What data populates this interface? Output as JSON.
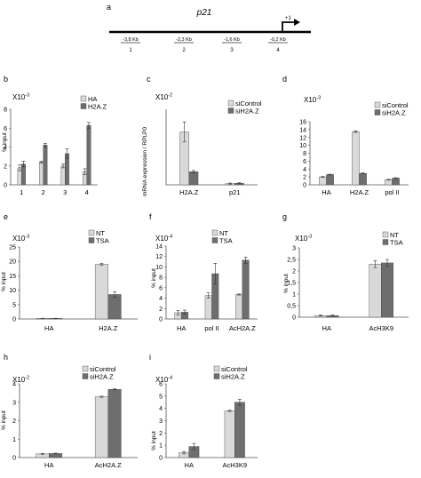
{
  "panel_a": {
    "label": "a",
    "gene": "p21",
    "tss_label": "+1",
    "regions": [
      {
        "pos": "-3,8 Kb",
        "num": "1"
      },
      {
        "pos": "-2,3 Kb",
        "num": "2"
      },
      {
        "pos": "-1,6 Kb",
        "num": "3"
      },
      {
        "pos": "-0,2 Kb",
        "num": "4"
      }
    ]
  },
  "colors": {
    "light": "#d9d9d9",
    "dark": "#6e6e6e"
  },
  "chart_data": [
    {
      "id": "b",
      "panel": "b",
      "type": "bar",
      "scale": "X10",
      "scale_exp": "-3",
      "ylabel": "% input",
      "ylim": [
        0,
        8
      ],
      "yticks": [
        "0",
        "2",
        "4",
        "6",
        "8"
      ],
      "categories": [
        "1",
        "2",
        "3",
        "4"
      ],
      "series": [
        {
          "name": "HA",
          "color": "light",
          "values": [
            1.8,
            2.4,
            2.0,
            1.4
          ],
          "errors": [
            0.3,
            0.1,
            0.2,
            0.3
          ]
        },
        {
          "name": "H2A.Z",
          "color": "dark",
          "values": [
            2.2,
            4.2,
            3.3,
            6.3
          ],
          "errors": [
            0.3,
            0.2,
            0.5,
            0.3
          ]
        }
      ]
    },
    {
      "id": "c",
      "panel": "c",
      "type": "bar",
      "scale": "X10",
      "scale_exp": "-2",
      "ylabel": "mRNA expression / RPLP0",
      "ylim": [
        0,
        30
      ],
      "yticks": [],
      "categories": [
        "H2A.Z",
        "p21"
      ],
      "series": [
        {
          "name": "siControl",
          "color": "light",
          "values": [
            21,
            0.5
          ],
          "errors": [
            4,
            0.2
          ]
        },
        {
          "name": "siH2A.Z",
          "color": "dark",
          "values": [
            5.2,
            0.6
          ],
          "errors": [
            0.5,
            0.2
          ]
        }
      ]
    },
    {
      "id": "d",
      "panel": "d",
      "type": "bar",
      "scale": "X10",
      "scale_exp": "-3",
      "ylabel": "% input",
      "ylim": [
        0,
        16
      ],
      "yticks": [
        "0",
        "2",
        "4",
        "6",
        "8",
        "10",
        "12",
        "14",
        "16"
      ],
      "categories": [
        "HA",
        "H2A.Z",
        "pol II"
      ],
      "series": [
        {
          "name": "siControl",
          "color": "light",
          "values": [
            2.0,
            13.5,
            1.3
          ],
          "errors": [
            0.1,
            0.2,
            0.1
          ]
        },
        {
          "name": "siH2A.Z",
          "color": "dark",
          "values": [
            2.6,
            2.9,
            1.7
          ],
          "errors": [
            0.1,
            0.1,
            0.1
          ]
        }
      ]
    },
    {
      "id": "e",
      "panel": "e",
      "type": "bar",
      "scale": "X10",
      "scale_exp": "-3",
      "ylabel": "% input",
      "ylim": [
        0,
        25
      ],
      "yticks": [
        "0",
        "5",
        "10",
        "15",
        "20",
        "25"
      ],
      "categories": [
        "HA",
        "H2A.Z"
      ],
      "series": [
        {
          "name": "NT",
          "color": "light",
          "values": [
            0.2,
            19
          ],
          "errors": [
            0.05,
            0.3
          ]
        },
        {
          "name": "TSA",
          "color": "dark",
          "values": [
            0.2,
            8.5
          ],
          "errors": [
            0.05,
            1.0
          ]
        }
      ]
    },
    {
      "id": "f",
      "panel": "f",
      "type": "bar",
      "scale": "X10",
      "scale_exp": "-4",
      "ylabel": "% input",
      "ylim": [
        0,
        14
      ],
      "yticks": [
        "0",
        "2",
        "4",
        "6",
        "8",
        "10",
        "12",
        "14"
      ],
      "categories": [
        "HA",
        "pol II",
        "AcH2A.Z"
      ],
      "series": [
        {
          "name": "NT",
          "color": "light",
          "values": [
            1.2,
            4.5,
            4.7
          ],
          "errors": [
            0.4,
            0.5,
            0.1
          ]
        },
        {
          "name": "TSA",
          "color": "dark",
          "values": [
            1.3,
            8.7,
            11.3
          ],
          "errors": [
            0.4,
            2.0,
            0.6
          ]
        }
      ]
    },
    {
      "id": "g",
      "panel": "g",
      "type": "bar",
      "scale": "X10",
      "scale_exp": "-3",
      "ylabel": "% input",
      "ylim": [
        0,
        3
      ],
      "yticks": [
        "0",
        "0,5",
        "1",
        "1,5",
        "2",
        "2,5",
        "3"
      ],
      "categories": [
        "HA",
        "AcH3K9"
      ],
      "series": [
        {
          "name": "NT",
          "color": "light",
          "values": [
            0.07,
            2.3
          ],
          "errors": [
            0.02,
            0.15
          ]
        },
        {
          "name": "TSA",
          "color": "dark",
          "values": [
            0.07,
            2.35
          ],
          "errors": [
            0.02,
            0.15
          ]
        }
      ]
    },
    {
      "id": "h",
      "panel": "h",
      "type": "bar",
      "scale": "X10",
      "scale_exp": "-2",
      "ylabel": "% input",
      "ylim": [
        0,
        4
      ],
      "yticks": [
        "0",
        "1",
        "2",
        "3",
        "4"
      ],
      "categories": [
        "HA",
        "AcH2A.Z"
      ],
      "series": [
        {
          "name": "siControl",
          "color": "light",
          "values": [
            0.2,
            3.3
          ],
          "errors": [
            0.02,
            0.03
          ]
        },
        {
          "name": "siH2A.Z",
          "color": "dark",
          "values": [
            0.22,
            3.7
          ],
          "errors": [
            0.02,
            0.03
          ]
        }
      ]
    },
    {
      "id": "i",
      "panel": "i",
      "type": "bar",
      "scale": "X10",
      "scale_exp": "-4",
      "ylabel": "% input",
      "ylim": [
        0,
        6
      ],
      "yticks": [
        "0",
        "1",
        "2",
        "3",
        "4",
        "5",
        "6"
      ],
      "categories": [
        "HA",
        "AcH3K9"
      ],
      "series": [
        {
          "name": "siControl",
          "color": "light",
          "values": [
            0.4,
            3.8
          ],
          "errors": [
            0.1,
            0.05
          ]
        },
        {
          "name": "siH2A.Z",
          "color": "dark",
          "values": [
            0.9,
            4.5
          ],
          "errors": [
            0.25,
            0.25
          ]
        }
      ]
    }
  ]
}
